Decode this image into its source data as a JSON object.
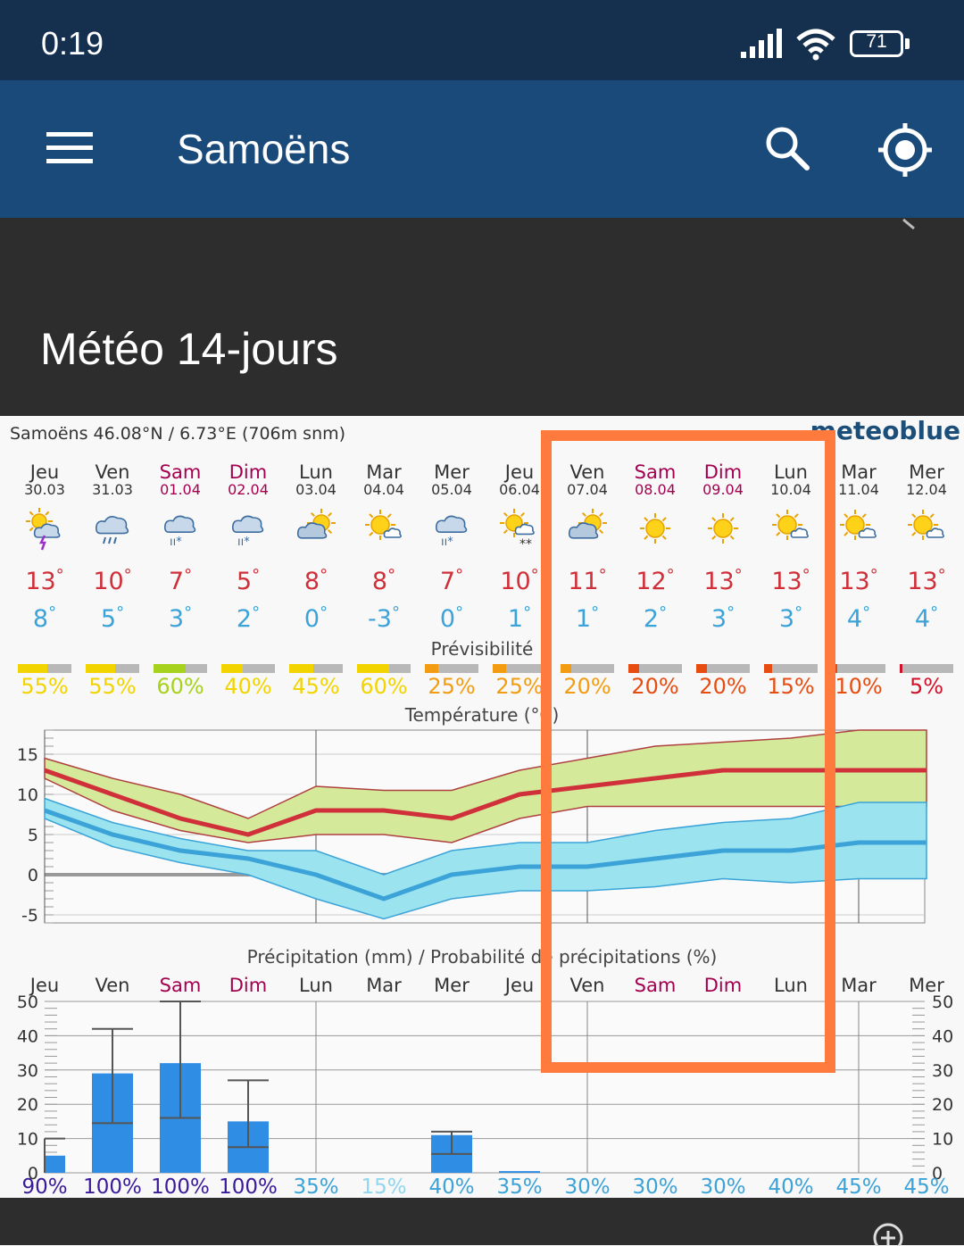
{
  "status_bar": {
    "time": "0:19",
    "battery": "71"
  },
  "app_bar": {
    "title": "Samoëns",
    "menu_icon": "menu-icon",
    "search_icon": "search-icon",
    "locate_icon": "gps-locate-icon"
  },
  "page": {
    "section_title": "Météo 14-jours"
  },
  "meteogram": {
    "location": "Samoëns  46.08°N / 6.73°E (706m snm)",
    "brand": "meteoblue",
    "days": [
      {
        "name": "Jeu",
        "date": "30.03",
        "weekend": false,
        "icon": "thunderstorm-icon",
        "tmax": "13",
        "tmin": "8",
        "pred": "55%",
        "pred_level": 0.55,
        "pred_color": "#f1d400",
        "prec_prob": "90%",
        "prob_color": "#3a1a9a",
        "precip": 5,
        "precip_max": 10
      },
      {
        "name": "Ven",
        "date": "31.03",
        "weekend": false,
        "icon": "rain-icon",
        "tmax": "10",
        "tmin": "5",
        "pred": "55%",
        "pred_level": 0.55,
        "pred_color": "#f1d400",
        "prec_prob": "100%",
        "prob_color": "#3a1a9a",
        "precip": 29,
        "precip_max": 42
      },
      {
        "name": "Sam",
        "date": "01.04",
        "weekend": true,
        "icon": "snow-rain-icon",
        "tmax": "7",
        "tmin": "3",
        "pred": "60%",
        "pred_level": 0.6,
        "pred_color": "#a6d21e",
        "prec_prob": "100%",
        "prob_color": "#3a1a9a",
        "precip": 32,
        "precip_max": 50
      },
      {
        "name": "Dim",
        "date": "02.04",
        "weekend": true,
        "icon": "snow-rain-icon",
        "tmax": "5",
        "tmin": "2",
        "pred": "40%",
        "pred_level": 0.4,
        "pred_color": "#f1d400",
        "prec_prob": "100%",
        "prob_color": "#3a1a9a",
        "precip": 15,
        "precip_max": 27
      },
      {
        "name": "Lun",
        "date": "03.04",
        "weekend": false,
        "icon": "partly-cloudy-icon",
        "tmax": "8",
        "tmin": "0",
        "pred": "45%",
        "pred_level": 0.45,
        "pred_color": "#f1d400",
        "prec_prob": "35%",
        "prob_color": "#3ba3d8",
        "precip": 0,
        "precip_max": 0
      },
      {
        "name": "Mar",
        "date": "04.04",
        "weekend": false,
        "icon": "sun-cloud-icon",
        "tmax": "8",
        "tmin": "-3",
        "pred": "60%",
        "pred_level": 0.6,
        "pred_color": "#f1d400",
        "prec_prob": "15%",
        "prob_color": "#8fd6ee",
        "precip": 0,
        "precip_max": 0
      },
      {
        "name": "Mer",
        "date": "05.04",
        "weekend": false,
        "icon": "snow-rain-icon",
        "tmax": "7",
        "tmin": "0",
        "pred": "25%",
        "pred_level": 0.25,
        "pred_color": "#f39c12",
        "prec_prob": "40%",
        "prob_color": "#3ba3d8",
        "precip": 11,
        "precip_max": 12
      },
      {
        "name": "Jeu",
        "date": "06.04",
        "weekend": false,
        "icon": "sun-snow-icon",
        "tmax": "10",
        "tmin": "1",
        "pred": "25%",
        "pred_level": 0.25,
        "pred_color": "#f39c12",
        "prec_prob": "35%",
        "prob_color": "#3ba3d8",
        "precip": 0.5,
        "precip_max": 0
      },
      {
        "name": "Ven",
        "date": "07.04",
        "weekend": false,
        "icon": "partly-cloudy-icon",
        "tmax": "11",
        "tmin": "1",
        "pred": "20%",
        "pred_level": 0.2,
        "pred_color": "#f39c12",
        "prec_prob": "30%",
        "prob_color": "#3ba3d8",
        "precip": 0,
        "precip_max": 0
      },
      {
        "name": "Sam",
        "date": "08.04",
        "weekend": true,
        "icon": "sun-icon",
        "tmax": "12",
        "tmin": "2",
        "pred": "20%",
        "pred_level": 0.2,
        "pred_color": "#e74c10",
        "prec_prob": "30%",
        "prob_color": "#3ba3d8",
        "precip": 0,
        "precip_max": 0
      },
      {
        "name": "Dim",
        "date": "09.04",
        "weekend": true,
        "icon": "sun-icon",
        "tmax": "13",
        "tmin": "3",
        "pred": "20%",
        "pred_level": 0.2,
        "pred_color": "#e74c10",
        "prec_prob": "30%",
        "prob_color": "#3ba3d8",
        "precip": 0,
        "precip_max": 0
      },
      {
        "name": "Lun",
        "date": "10.04",
        "weekend": false,
        "icon": "sun-cloud-icon",
        "tmax": "13",
        "tmin": "3",
        "pred": "15%",
        "pred_level": 0.15,
        "pred_color": "#e74c10",
        "prec_prob": "40%",
        "prob_color": "#3ba3d8",
        "precip": 0,
        "precip_max": 0
      },
      {
        "name": "Mar",
        "date": "11.04",
        "weekend": false,
        "icon": "sun-cloud-icon",
        "tmax": "13",
        "tmin": "4",
        "pred": "10%",
        "pred_level": 0.1,
        "pred_color": "#e74c10",
        "prec_prob": "45%",
        "prob_color": "#3ba3d8",
        "precip": 0,
        "precip_max": 0
      },
      {
        "name": "Mer",
        "date": "12.04",
        "weekend": false,
        "icon": "sun-cloud-icon",
        "tmax": "13",
        "tmin": "4",
        "pred": "5%",
        "pred_level": 0.05,
        "pred_color": "#d0112b",
        "prec_prob": "45%",
        "prob_color": "#3ba3d8",
        "precip": 0,
        "precip_max": 0
      }
    ],
    "predictability_title": "Prévisibilité",
    "temperature_title": "Température (°C)",
    "precip_title": "Précipitation (mm) / Probabilité de précipitations (%)",
    "colors": {
      "tmax": "#d0303a",
      "tmin": "#3ba3d8",
      "weekend": "#a3004f",
      "highlight": "#ff7a3d"
    }
  },
  "chart_data": [
    {
      "type": "line",
      "title": "Température (°C)",
      "categories": [
        "Jeu 30.03",
        "Ven 31.03",
        "Sam 01.04",
        "Dim 02.04",
        "Lun 03.04",
        "Mar 04.04",
        "Mer 05.04",
        "Jeu 06.04",
        "Ven 07.04",
        "Sam 08.04",
        "Dim 09.04",
        "Lun 10.04",
        "Mar 11.04",
        "Mer 12.04"
      ],
      "ylim": [
        -6,
        18
      ],
      "yticks": [
        "15",
        "10",
        "5",
        "0",
        "-5"
      ],
      "series": [
        {
          "name": "max",
          "values": [
            13,
            10,
            7,
            5,
            8,
            8,
            7,
            10,
            11,
            12,
            13,
            13,
            13,
            13
          ],
          "range_high": [
            14.5,
            12,
            10,
            7,
            11,
            10.5,
            10.5,
            13,
            14.5,
            16,
            16.5,
            17,
            18,
            18
          ],
          "range_low": [
            12,
            8,
            5.5,
            4,
            5,
            5,
            4,
            7,
            8.5,
            8.5,
            8.5,
            8.5,
            8.5,
            8.5
          ]
        },
        {
          "name": "min",
          "values": [
            8,
            5,
            3,
            2,
            0,
            -3,
            0,
            1,
            1,
            2,
            3,
            3,
            4,
            4
          ],
          "range_high": [
            9.5,
            6.5,
            4.5,
            3,
            3,
            0,
            3,
            4,
            4,
            5.5,
            6.5,
            7,
            9,
            9
          ],
          "range_low": [
            7,
            3.5,
            1.5,
            0,
            -3,
            -5.5,
            -3,
            -2,
            -2,
            -1.5,
            -0.5,
            -1,
            -0.5,
            -0.5
          ]
        }
      ]
    },
    {
      "type": "bar",
      "title": "Précipitation (mm) / Probabilité de précipitations (%)",
      "categories": [
        "Jeu",
        "Ven",
        "Sam",
        "Dim",
        "Lun",
        "Mar",
        "Mer",
        "Jeu",
        "Ven",
        "Sam",
        "Dim",
        "Lun",
        "Mar",
        "Mer"
      ],
      "values": [
        5,
        29,
        32,
        15,
        0,
        0,
        11,
        0.5,
        0,
        0,
        0,
        0,
        0,
        0
      ],
      "ylim": [
        0,
        50
      ],
      "yticks": [
        "50",
        "40",
        "30",
        "20",
        "10",
        "0"
      ],
      "probabilities": [
        "90%",
        "100%",
        "100%",
        "100%",
        "35%",
        "15%",
        "40%",
        "35%",
        "30%",
        "30%",
        "30%",
        "40%",
        "45%",
        "45%"
      ]
    }
  ],
  "bottom_bar": {
    "zoom_icon": "zoom-in-icon"
  }
}
